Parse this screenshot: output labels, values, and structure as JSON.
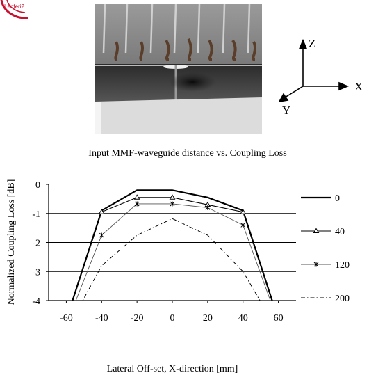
{
  "logo": {
    "text": "Lenferi2"
  },
  "axes_diagram": {
    "z_label": "Z",
    "x_label": "X",
    "y_label": "Y"
  },
  "chart_data": {
    "type": "line",
    "title": "Input MMF-waveguide distance vs. Coupling Loss",
    "xlabel": "Lateral Off-set, X-direction [mm]",
    "ylabel": "Normalized Coupling Loss [dB]",
    "xlim": [
      -70,
      70
    ],
    "ylim": [
      -4,
      0
    ],
    "x_ticks": [
      "-60",
      "-40",
      "-20",
      "0",
      "20",
      "40",
      "60"
    ],
    "y_ticks": [
      "0",
      "-1",
      "-2",
      "-3",
      "-4"
    ],
    "grid": "horizontal",
    "legend_position": "right",
    "series": [
      {
        "name": "0",
        "style": "thick-solid",
        "x": [
          -65,
          -40,
          -20,
          0,
          20,
          40,
          65
        ],
        "y": [
          -5.6,
          -0.9,
          -0.2,
          -0.2,
          -0.45,
          -0.9,
          -5.6
        ]
      },
      {
        "name": "40",
        "style": "triangle",
        "x": [
          -65,
          -40,
          -20,
          0,
          20,
          40,
          65
        ],
        "y": [
          -5.6,
          -0.95,
          -0.45,
          -0.45,
          -0.7,
          -0.95,
          -5.6
        ]
      },
      {
        "name": "120",
        "style": "star",
        "x": [
          -65,
          -40,
          -20,
          0,
          20,
          40,
          65
        ],
        "y": [
          -5.6,
          -1.75,
          -0.67,
          -0.67,
          -0.8,
          -1.4,
          -5.6
        ]
      },
      {
        "name": "200",
        "style": "dash-dot",
        "x": [
          -65,
          -40,
          -20,
          0,
          20,
          40,
          65
        ],
        "y": [
          -5.6,
          -2.8,
          -1.75,
          -1.18,
          -1.75,
          -3.0,
          -5.6
        ]
      }
    ]
  }
}
